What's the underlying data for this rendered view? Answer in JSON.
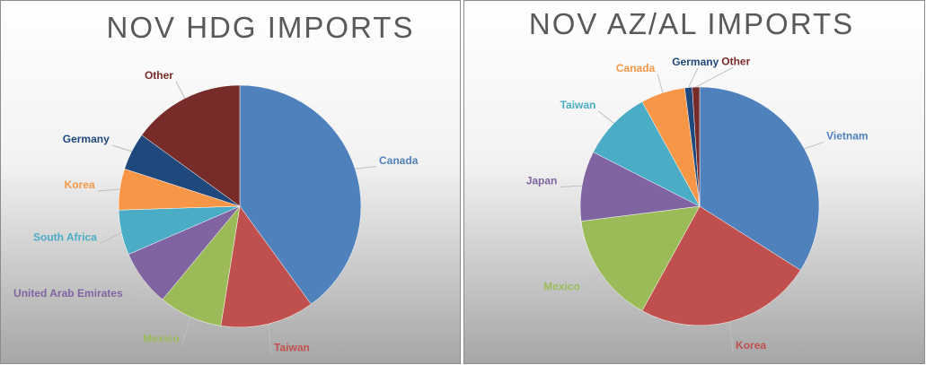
{
  "chart_data": [
    {
      "type": "pie",
      "title": "NOV HDG IMPORTS",
      "categories": [
        "Canada",
        "Taiwan",
        "Mexico",
        "United Arab Emirates",
        "South Africa",
        "Korea",
        "Germany",
        "Other"
      ],
      "values": [
        40,
        12.5,
        8.5,
        7.5,
        6,
        5.5,
        5,
        15
      ],
      "colors": [
        "#4f81bd",
        "#c0504d",
        "#9bbb59",
        "#8064a2",
        "#4bacc6",
        "#f79646",
        "#1f497d",
        "#772c2a"
      ]
    },
    {
      "type": "pie",
      "title": "NOV AZ/AL IMPORTS",
      "categories": [
        "Vietnam",
        "Korea",
        "Mexico",
        "Japan",
        "Taiwan",
        "Canada",
        "Germany",
        "Other"
      ],
      "values": [
        34,
        24,
        15,
        9.5,
        9.5,
        6,
        1,
        1
      ],
      "colors": [
        "#4f81bd",
        "#c0504d",
        "#9bbb59",
        "#8064a2",
        "#4bacc6",
        "#f79646",
        "#1f497d",
        "#772c2a"
      ]
    }
  ]
}
